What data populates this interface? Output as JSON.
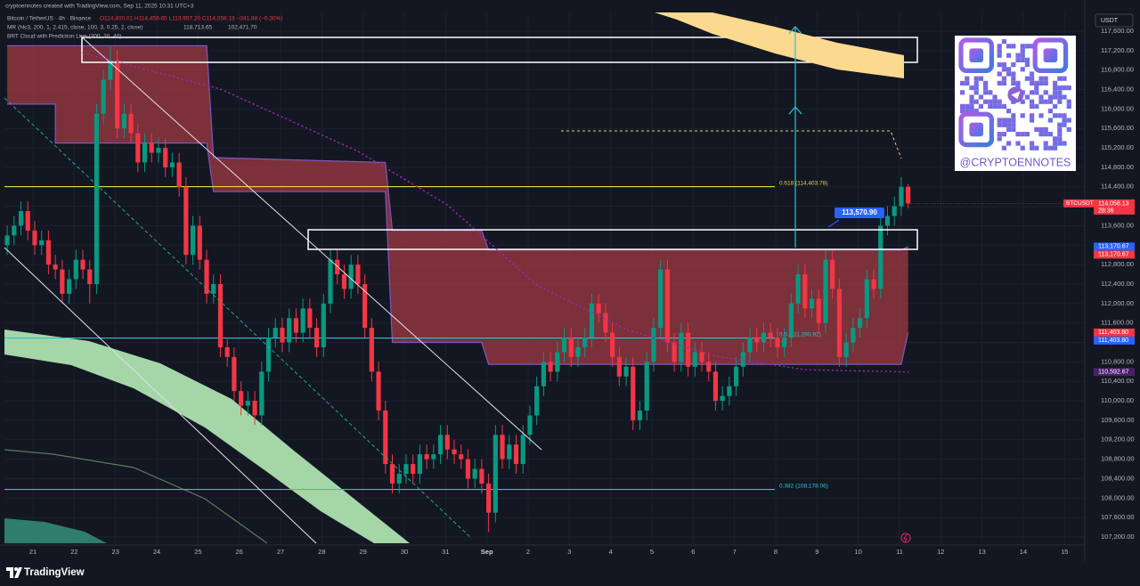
{
  "header": {
    "credit": "cryptoennotes created with TradingView.com, Sep 11, 2025 10:31 UTC+3",
    "symbol": "Bitcoin / TetherUS · 4h · Binance",
    "ohlc": "O114,400.01 H114,459.65 L113,957.20 C114,058.13 −341.88 (−0.30%)",
    "indicator1": "MR (hlc3, 200, 1, 2.415, close, 100, 3, 0.25, 2, close)",
    "indicator1_values": [
      "118,713.65",
      "102,471.70"
    ],
    "indicator2": "BRT Cloud with Prediction Line (200, 20, 40)"
  },
  "footer": {
    "brand": "TradingView"
  },
  "qr": {
    "handle": "@CRYPTOENNOTES"
  },
  "chart_data": {
    "type": "candlestick",
    "currency": "USDT",
    "symbol_tag": "BTCUSDT",
    "last_price_label": "114,058.13",
    "countdown": "28:36",
    "callout": {
      "value": 113570.9,
      "label": "113,570.90"
    },
    "grid": true,
    "xlim": [
      -0.4,
      156.3
    ],
    "xticks": [
      {
        "value": 3.75,
        "label": "21"
      },
      {
        "value": 9.75,
        "label": "22"
      },
      {
        "value": 15.75,
        "label": "23"
      },
      {
        "value": 21.75,
        "label": "24"
      },
      {
        "value": 27.75,
        "label": "25"
      },
      {
        "value": 33.75,
        "label": "26"
      },
      {
        "value": 39.75,
        "label": "27"
      },
      {
        "value": 45.75,
        "label": "28"
      },
      {
        "value": 51.75,
        "label": "29"
      },
      {
        "value": 57.75,
        "label": "30"
      },
      {
        "value": 63.75,
        "label": "31"
      },
      {
        "value": 69.75,
        "label": "Sep"
      },
      {
        "value": 75.75,
        "label": "2"
      },
      {
        "value": 81.75,
        "label": "3"
      },
      {
        "value": 87.75,
        "label": "4"
      },
      {
        "value": 93.75,
        "label": "5"
      },
      {
        "value": 99.75,
        "label": "6"
      },
      {
        "value": 105.75,
        "label": "7"
      },
      {
        "value": 111.75,
        "label": "8"
      },
      {
        "value": 117.75,
        "label": "9"
      },
      {
        "value": 123.75,
        "label": "10"
      },
      {
        "value": 129.75,
        "label": "11"
      },
      {
        "value": 135.75,
        "label": "12"
      },
      {
        "value": 141.75,
        "label": "13"
      },
      {
        "value": 147.75,
        "label": "14"
      },
      {
        "value": 153.75,
        "label": "15"
      }
    ],
    "ylim": [
      106742,
      117984
    ],
    "yticks": [
      {
        "value": 107200,
        "label": "107,200.00"
      },
      {
        "value": 107600,
        "label": "107,600.00"
      },
      {
        "value": 108000,
        "label": "108,000.00"
      },
      {
        "value": 108400,
        "label": "108,400.00"
      },
      {
        "value": 108800,
        "label": "108,800.00"
      },
      {
        "value": 109200,
        "label": "109,200.00"
      },
      {
        "value": 109600,
        "label": "109,600.00"
      },
      {
        "value": 110000,
        "label": "110,000.00"
      },
      {
        "value": 110400,
        "label": "110,400.00"
      },
      {
        "value": 110800,
        "label": "110,800.00"
      },
      {
        "value": 111200,
        "label": "111,200.00"
      },
      {
        "value": 111600,
        "label": "111,600.00"
      },
      {
        "value": 112000,
        "label": "112,000.00"
      },
      {
        "value": 112400,
        "label": "112,400.00"
      },
      {
        "value": 112800,
        "label": "112,800.00"
      },
      {
        "value": 113200,
        "label": "113,200.00"
      },
      {
        "value": 113600,
        "label": "113,600.00"
      },
      {
        "value": 114000,
        "label": "114,000.00"
      },
      {
        "value": 114400,
        "label": "114,400.00"
      },
      {
        "value": 114800,
        "label": "114,800.00"
      },
      {
        "value": 115200,
        "label": "115,200.00"
      },
      {
        "value": 115600,
        "label": "115,600.00"
      },
      {
        "value": 116000,
        "label": "116,000.00"
      },
      {
        "value": 116400,
        "label": "116,400.00"
      },
      {
        "value": 116800,
        "label": "116,800.00"
      },
      {
        "value": 117200,
        "label": "117,200.00"
      },
      {
        "value": 117600,
        "label": "117,600.00"
      }
    ],
    "candles": {
      "up_color": "#089981",
      "down_color": "#f23645",
      "open": [
        113200,
        113400,
        113600,
        113900,
        113500,
        113200,
        113300,
        112800,
        112700,
        112200,
        112500,
        112900,
        112700,
        112400,
        115900,
        116600,
        117000,
        115600,
        115900,
        115500,
        114900,
        115300,
        115100,
        115200,
        114800,
        114900,
        114400,
        113000,
        113600,
        112900,
        112200,
        112400,
        111100,
        110900,
        110200,
        109900,
        110000,
        109700,
        110600,
        111300,
        111500,
        111200,
        111700,
        111400,
        111900,
        111500,
        111100,
        112000,
        112900,
        112600,
        112300,
        112800,
        112400,
        111500,
        110600,
        109800,
        108700,
        108300,
        108500,
        108700,
        108500,
        108900,
        108800,
        108900,
        109300,
        109000,
        108900,
        108800,
        108400,
        108600,
        108300,
        107700,
        109300,
        108800,
        109100,
        108700,
        109300,
        109700,
        110300,
        110800,
        110600,
        111000,
        111300,
        110900,
        111100,
        111300,
        112000,
        111800,
        111400,
        110900,
        110500,
        110700,
        109600,
        109800,
        110800,
        111500,
        112700,
        111200,
        110800,
        111400,
        110700,
        111000,
        110800,
        110600,
        110000,
        110100,
        110300,
        110700,
        111000,
        111300,
        111200,
        111400,
        111300,
        111100,
        111300,
        112000,
        112600,
        111900,
        112100,
        111600,
        112900,
        112300,
        110900,
        111200,
        111500,
        111700,
        112500,
        112300,
        113600,
        113800,
        114000,
        114400.01
      ],
      "high": [
        113600,
        113800,
        114100,
        114100,
        113700,
        113500,
        113500,
        113000,
        112900,
        112700,
        113100,
        113100,
        112900,
        116100,
        116800,
        117300,
        117200,
        116100,
        116100,
        115700,
        115500,
        115500,
        115400,
        115400,
        115100,
        115100,
        114600,
        113800,
        113800,
        113100,
        112600,
        112600,
        111300,
        111100,
        110400,
        110200,
        110200,
        110800,
        111500,
        111700,
        111700,
        111900,
        111900,
        112100,
        112100,
        111700,
        112200,
        113100,
        113100,
        112800,
        113000,
        113000,
        112600,
        111700,
        110800,
        110000,
        108900,
        108700,
        108900,
        108900,
        109100,
        109100,
        109100,
        109500,
        109500,
        109200,
        109100,
        109000,
        108800,
        108800,
        108500,
        109500,
        109500,
        109300,
        109300,
        109500,
        109900,
        110500,
        111000,
        111000,
        111200,
        111500,
        111500,
        111300,
        111500,
        112200,
        112200,
        112000,
        111600,
        111100,
        110900,
        110900,
        110000,
        111000,
        111700,
        112900,
        112900,
        111400,
        111600,
        111600,
        111200,
        111200,
        111000,
        110800,
        110300,
        110500,
        110900,
        111200,
        111500,
        111500,
        111600,
        111600,
        111500,
        111500,
        112200,
        112800,
        112800,
        112300,
        112300,
        113100,
        113100,
        112500,
        111400,
        111700,
        111900,
        112700,
        112700,
        113800,
        114000,
        114200,
        114600,
        114459.65
      ],
      "low": [
        113000,
        113200,
        113400,
        113300,
        113000,
        113000,
        112600,
        112500,
        112000,
        112000,
        112300,
        112500,
        112000,
        112200,
        115700,
        116400,
        115400,
        115400,
        115300,
        114700,
        114700,
        114900,
        114900,
        114600,
        114600,
        114200,
        112800,
        112800,
        112700,
        112000,
        112000,
        110900,
        110700,
        110000,
        109700,
        109700,
        109500,
        109500,
        110400,
        111100,
        111000,
        111000,
        111200,
        111200,
        111300,
        110900,
        110900,
        111800,
        112400,
        112100,
        112100,
        112200,
        111300,
        110400,
        109600,
        108500,
        108100,
        108100,
        108300,
        108300,
        108300,
        108600,
        108600,
        108700,
        108800,
        108700,
        108600,
        108200,
        108200,
        108100,
        107300,
        107500,
        108600,
        108600,
        108500,
        108500,
        109100,
        109500,
        110100,
        110400,
        110400,
        110800,
        110700,
        110700,
        110900,
        111100,
        111600,
        111200,
        110700,
        110300,
        110300,
        109400,
        109400,
        109600,
        110600,
        111300,
        111000,
        110600,
        110600,
        110500,
        110500,
        110600,
        110400,
        109800,
        109800,
        109900,
        110100,
        110500,
        110800,
        111000,
        111000,
        111100,
        110900,
        110900,
        111100,
        111800,
        111700,
        111700,
        111400,
        111400,
        112100,
        110700,
        110700,
        111000,
        111300,
        111500,
        112100,
        112100,
        113400,
        113600,
        113800,
        113957.2
      ],
      "close": [
        113400,
        113600,
        113900,
        113500,
        113200,
        113300,
        112800,
        112700,
        112200,
        112500,
        112900,
        112700,
        112400,
        115900,
        116600,
        117000,
        115600,
        115900,
        115500,
        114900,
        115300,
        115100,
        115200,
        114800,
        114900,
        114400,
        113000,
        113600,
        112900,
        112200,
        112400,
        111100,
        110900,
        110200,
        109900,
        110000,
        109700,
        110600,
        111300,
        111500,
        111200,
        111700,
        111400,
        111900,
        111500,
        111100,
        112000,
        112900,
        112600,
        112300,
        112800,
        112400,
        111500,
        110600,
        109800,
        108700,
        108300,
        108500,
        108700,
        108500,
        108900,
        108800,
        108900,
        109300,
        109000,
        108900,
        108800,
        108400,
        108600,
        108300,
        107700,
        109300,
        108800,
        109100,
        108700,
        109300,
        109700,
        110300,
        110800,
        110600,
        111000,
        111300,
        110900,
        111100,
        111300,
        112000,
        111800,
        111400,
        110900,
        110500,
        110700,
        109600,
        109800,
        110800,
        111500,
        112700,
        111200,
        110800,
        111400,
        110700,
        111000,
        110800,
        110600,
        110000,
        110100,
        110300,
        110700,
        111000,
        111300,
        111200,
        111400,
        111300,
        111100,
        111300,
        112000,
        112600,
        111900,
        112100,
        111600,
        112900,
        112300,
        110900,
        111200,
        111500,
        111700,
        112500,
        112300,
        113600,
        113800,
        114000,
        114400,
        114058.13
      ]
    },
    "cloud": {
      "color": "#c2414b",
      "edge_color": "#7e57c2",
      "x": [
        0,
        7,
        7,
        29,
        30,
        55,
        56,
        69,
        70,
        130,
        131
      ],
      "upper": [
        117300,
        117300,
        117300,
        117300,
        115000,
        114900,
        113500,
        113500,
        113100,
        113100,
        113170.67
      ],
      "lower": [
        116100,
        116100,
        115300,
        115300,
        114300,
        114300,
        111200,
        111200,
        110750,
        110750,
        111403.8
      ]
    },
    "ma": {
      "color": "#9c27b0",
      "x": [
        11,
        31,
        51,
        64,
        77,
        90,
        103,
        116,
        131
      ],
      "values": [
        117150,
        116410,
        115130,
        114030,
        112380,
        111470,
        110920,
        110640,
        110592.67
      ]
    },
    "levels": [
      {
        "value": 114403.78,
        "label": "0.618 (114,403.78)",
        "color": "#f0d43a"
      },
      {
        "value": 111290.92,
        "label": "0.5 (111,290.92)",
        "color": "#26c6da"
      },
      {
        "value": 108178.06,
        "label": "0.382 (108,178.06)",
        "color": "#26c6da"
      }
    ],
    "price_tags": [
      {
        "value": 113170.67,
        "label": "113,170.67",
        "color": "#2962ff"
      },
      {
        "value": 113170.67,
        "label": "113,170.67",
        "color": "#f23645"
      },
      {
        "value": 111403.8,
        "label": "111,403.80",
        "color": "#f23645"
      },
      {
        "value": 111403.8,
        "label": "111,403.80",
        "color": "#2962ff"
      },
      {
        "value": 110592.67,
        "label": "110,592.67",
        "color": "#4a1f6a"
      }
    ]
  }
}
